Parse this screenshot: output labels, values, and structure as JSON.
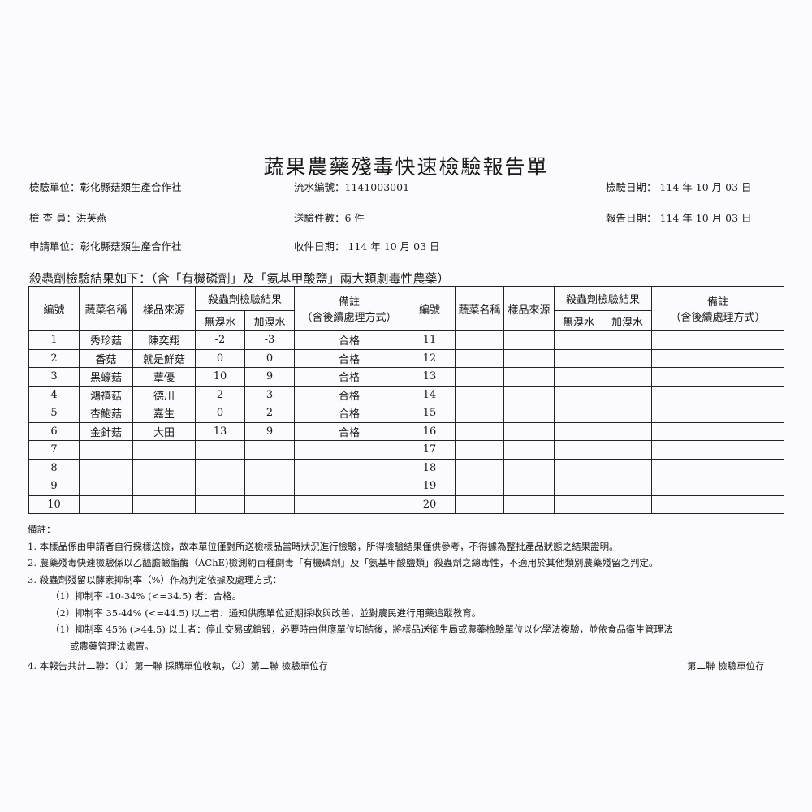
{
  "title": "蔬果農藥殘毒快速檢驗報告單",
  "header": {
    "inspection_unit": "檢驗單位：彰化縣菇類生產合作社",
    "serial_no": "流水編號：1141003001",
    "inspection_date": "檢驗日期： 114 年  10 月  03  日",
    "inspector": "檢 查 員：洪芙燕",
    "sample_count": "送驗件數：6 件",
    "report_date": "報告日期： 114 年  10 月  03  日",
    "applicant": "申請單位：彰化縣菇類生產合作社",
    "received_date": "收件日期： 114 年  10 月 03 日"
  },
  "subtitle": "殺蟲劑檢驗結果如下：（含「有機磷劑」及「氨基甲酸鹽」兩大類劇毒性農藥）",
  "table": {
    "headers": {
      "no": "編號",
      "name": "蔬菜名稱",
      "source": "樣品來源",
      "result": "殺蟲劑檢驗結果",
      "no_bromine": "無溴水",
      "with_bromine": "加溴水",
      "remark": "備註",
      "remark_sub": "（含後續處理方式）"
    },
    "left_rows": [
      {
        "no": "1",
        "name": "秀珍菇",
        "source": "陳奕翔",
        "a": "-2",
        "b": "-3",
        "remark": "合格"
      },
      {
        "no": "2",
        "name": "香菇",
        "source": "就是鮮菇",
        "a": "0",
        "b": "0",
        "remark": "合格"
      },
      {
        "no": "3",
        "name": "黑蠔菇",
        "source": "蕈優",
        "a": "10",
        "b": "9",
        "remark": "合格"
      },
      {
        "no": "4",
        "name": "鴻禧菇",
        "source": "德川",
        "a": "2",
        "b": "3",
        "remark": "合格"
      },
      {
        "no": "5",
        "name": "杏鮑菇",
        "source": "嘉生",
        "a": "0",
        "b": "2",
        "remark": "合格"
      },
      {
        "no": "6",
        "name": "金針菇",
        "source": "大田",
        "a": "13",
        "b": "9",
        "remark": "合格"
      },
      {
        "no": "7",
        "name": "",
        "source": "",
        "a": "",
        "b": "",
        "remark": ""
      },
      {
        "no": "8",
        "name": "",
        "source": "",
        "a": "",
        "b": "",
        "remark": ""
      },
      {
        "no": "9",
        "name": "",
        "source": "",
        "a": "",
        "b": "",
        "remark": ""
      },
      {
        "no": "10",
        "name": "",
        "source": "",
        "a": "",
        "b": "",
        "remark": ""
      }
    ],
    "right_nos": [
      "11",
      "12",
      "13",
      "14",
      "15",
      "16",
      "17",
      "18",
      "19",
      "20"
    ]
  },
  "notes": {
    "label": "備註：",
    "lines": [
      "1. 本樣品係由申請者自行採樣送檢，故本單位僅對所送檢樣品當時狀況進行檢驗，所得檢驗結果僅供參考，不得據為整批產品狀態之結果證明。",
      "2. 農藥殘毒快速檢驗係以乙醯膽鹼酯酶（AChE)檢測約百種劇毒「有機磷劑」及「氨基甲酸鹽類」殺蟲劑之總毒性，不適用於其他類別農藥殘留之判定。",
      "3. 殺蟲劑殘留以酵素抑制率（%）作為判定依據及處理方式："
    ],
    "sub": [
      "（1）抑制率 -10-34% (<=34.5) 者：合格。",
      "（2）抑制率 35-44% (<=44.5) 以上者：通知供應單位延期採收與改善，並對農民進行用藥追蹤教育。",
      "（1）抑制率 45% (>44.5) 以上者：停止交易或銷毀，必要時由供應單位切結後，將樣品送衛生局或農藥檢驗單位以化學法複驗，並依食品衛生管理法"
    ],
    "sub_cont": "或農藥管理法處置。",
    "footer": "4. 本報告共計二聯：（1）第一聯 採購單位收執，（2）第二聯 檢驗單位存",
    "copy": "第二聯  檢驗單位存"
  }
}
